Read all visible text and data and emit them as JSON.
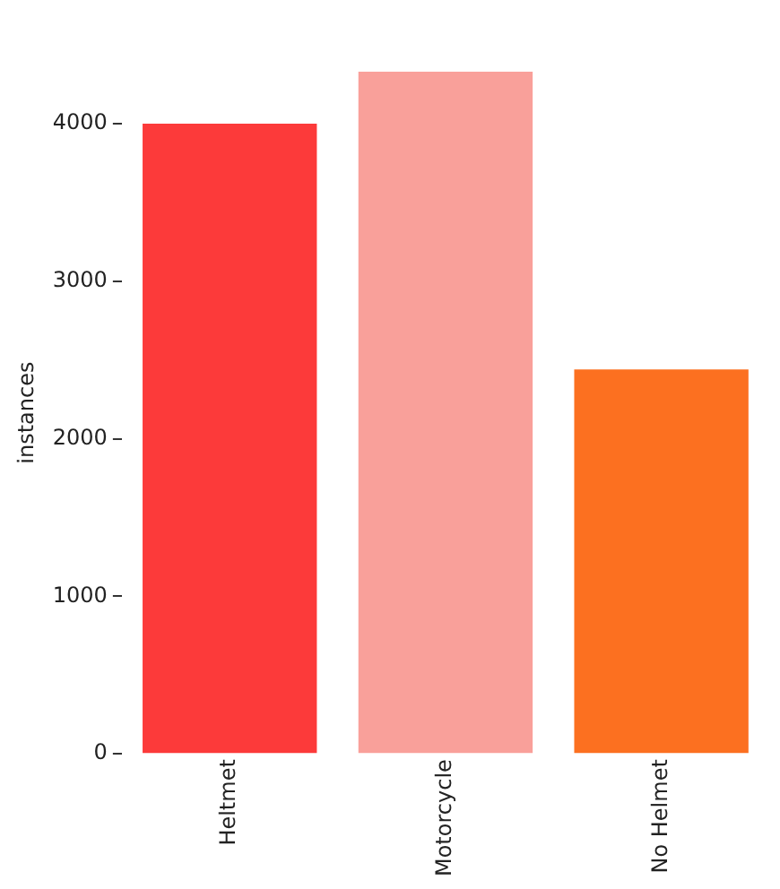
{
  "chart_data": {
    "type": "bar",
    "ylabel": "instances",
    "categories": [
      "Heltmet",
      "Motorcycle",
      "No Helmet"
    ],
    "values": [
      4000,
      4330,
      2440
    ],
    "colors": [
      "#fc3a3a",
      "#f9a09a",
      "#fc7020"
    ],
    "ylim": [
      0,
      4330
    ],
    "yticks": [
      0,
      1000,
      2000,
      3000,
      4000
    ],
    "grid": false,
    "legend": false
  }
}
